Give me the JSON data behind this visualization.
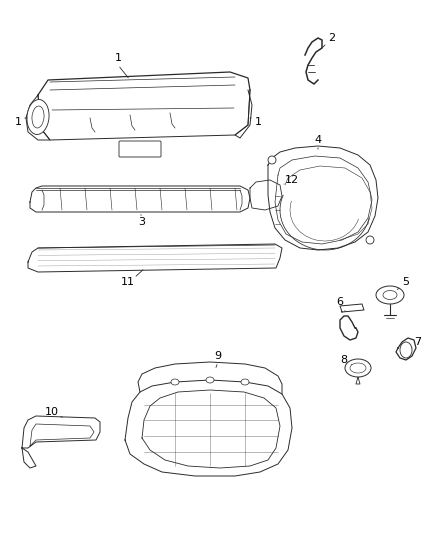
{
  "bg_color": "#ffffff",
  "line_color": "#2a2a2a",
  "label_color": "#000000",
  "fig_width": 4.38,
  "fig_height": 5.33,
  "dpi": 100,
  "lw": 0.7
}
